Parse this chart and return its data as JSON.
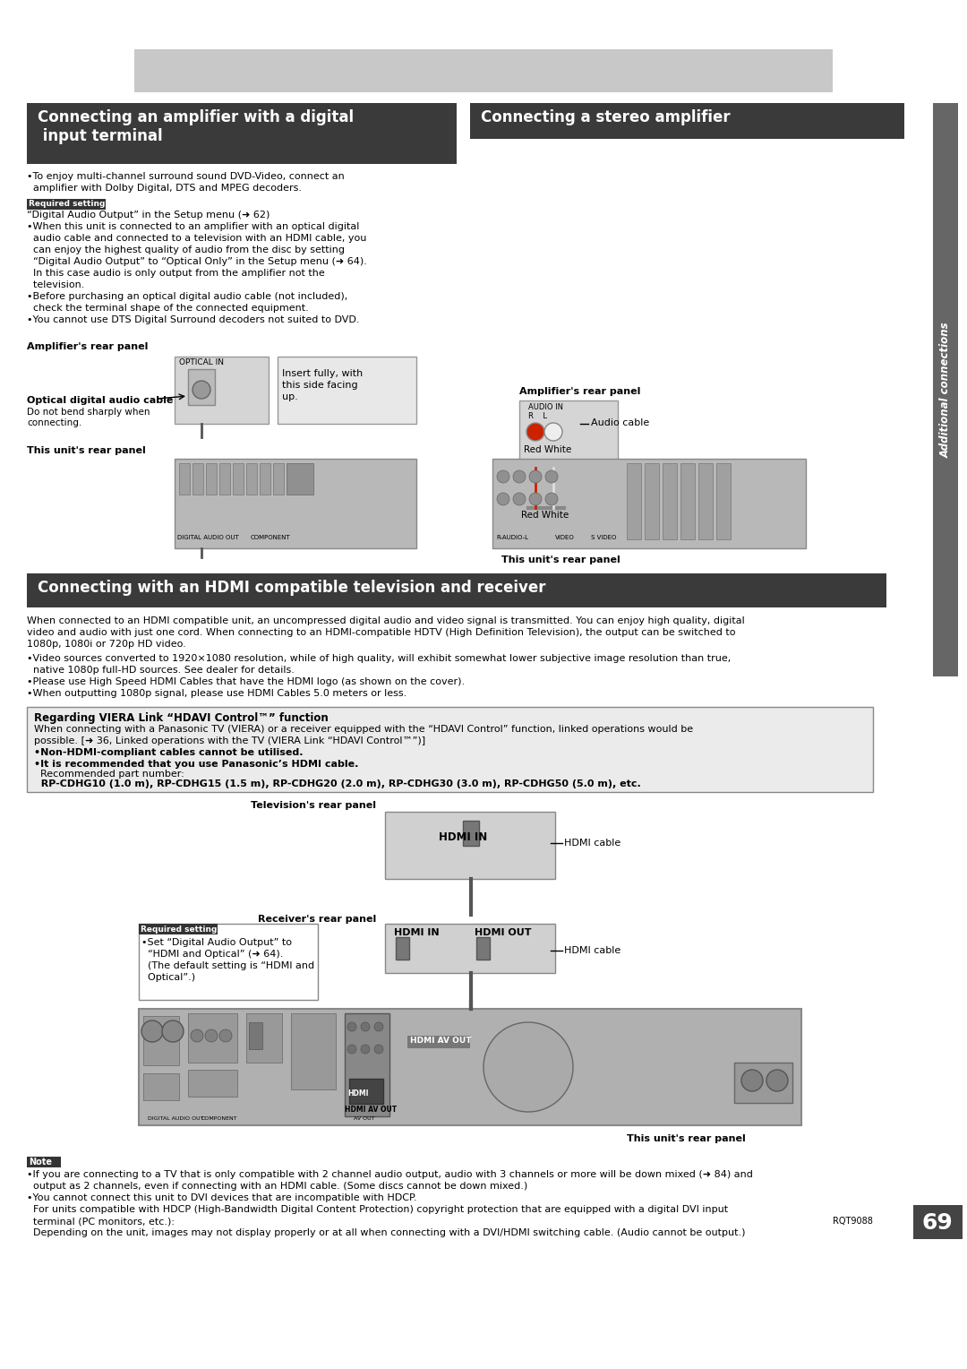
{
  "bg_color": "#ffffff",
  "header_gray_color": "#c8c8c8",
  "section1_title_line1": "Connecting an amplifier with a digital",
  "section1_title_line2": " input terminal",
  "section2_title": "Connecting a stereo amplifier",
  "section3_title": "Connecting with an HDMI compatible television and receiver",
  "section_title_bg": "#3a3a3a",
  "section3_title_bg": "#3a3a3a",
  "section_title_color": "#ffffff",
  "body_fontsize": 8.0,
  "label_fontsize": 8.0,
  "small_fontsize": 7.0,
  "sidebar_text": "Additional connections",
  "sidebar_color": "#555555",
  "page_num": "69",
  "required_setting_bg": "#333333",
  "note_bg": "#333333",
  "viera_box_bg": "#ebebeb",
  "viera_box_border": "#888888",
  "diagram_box_bg": "#d8d8d8",
  "diagram_panel_bg": "#c0c0c0"
}
